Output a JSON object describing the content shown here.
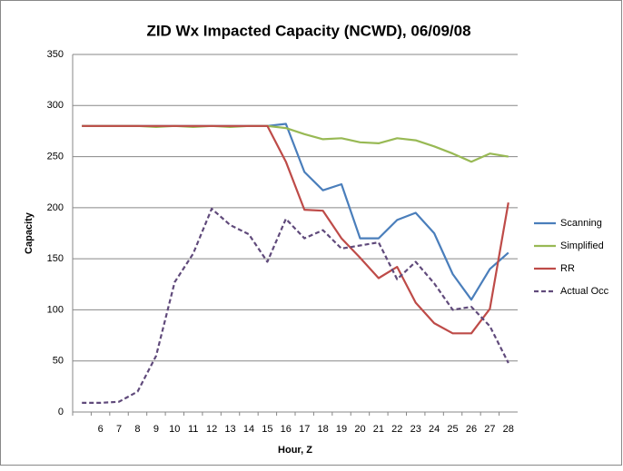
{
  "chart_data": {
    "type": "line",
    "title": "ZID Wx Impacted Capacity (NCWD), 06/09/08",
    "x_label": "Hour, Z",
    "y_label": "Capacity",
    "categories": [
      null,
      "6",
      "7",
      "8",
      "9",
      "10",
      "11",
      "12",
      "13",
      "14",
      "15",
      "16",
      "17",
      "18",
      "19",
      "20",
      "21",
      "22",
      "23",
      "24",
      "25",
      "26",
      "27",
      "28"
    ],
    "series": [
      {
        "name": "Scanning",
        "color": "#4a7ebb",
        "values": [
          280,
          280,
          280,
          280,
          280,
          280,
          280,
          280,
          280,
          280,
          280,
          282,
          235,
          217,
          223,
          170,
          170,
          188,
          195,
          175,
          135,
          110,
          140,
          156
        ]
      },
      {
        "name": "Simplified",
        "color": "#98b954",
        "values": [
          280,
          280,
          280,
          280,
          279,
          280,
          279,
          280,
          279,
          280,
          280,
          278,
          272,
          267,
          268,
          264,
          263,
          268,
          266,
          260,
          253,
          245,
          253,
          250
        ]
      },
      {
        "name": "RR",
        "color": "#be4b48",
        "values": [
          280,
          280,
          280,
          280,
          280,
          280,
          280,
          280,
          280,
          280,
          280,
          245,
          198,
          197,
          170,
          151,
          131,
          142,
          107,
          87,
          77,
          77,
          101,
          205
        ]
      },
      {
        "name": "Actual Occ",
        "color": "#604a7b",
        "dashed": true,
        "values": [
          9,
          9,
          10,
          20,
          55,
          127,
          155,
          199,
          183,
          174,
          147,
          189,
          170,
          178,
          160,
          163,
          166,
          130,
          147,
          126,
          100,
          103,
          84,
          48
        ]
      }
    ],
    "ylim": [
      0,
      350
    ],
    "yticks": [
      0,
      50,
      100,
      150,
      200,
      250,
      300,
      350
    ],
    "grid": true,
    "legend": "right"
  }
}
